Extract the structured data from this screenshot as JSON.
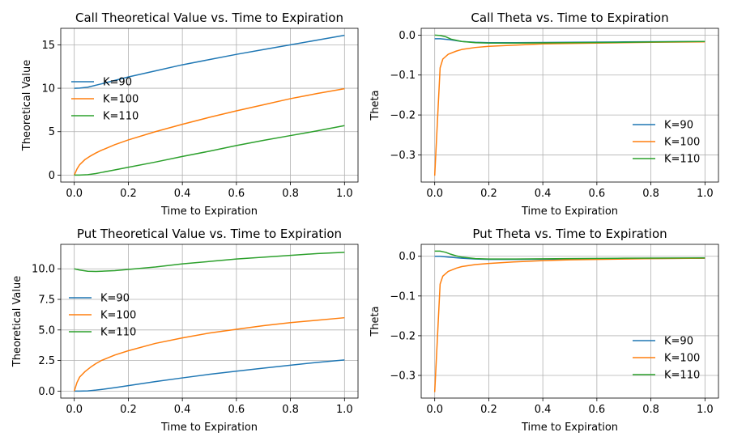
{
  "figure": {
    "background": "#ffffff",
    "grid_color": "#b0b0b0"
  },
  "chart_data": [
    {
      "type": "line",
      "title": "Call Theoretical Value vs. Time to Expiration",
      "xlabel": "Time to Expiration",
      "ylabel": "Theoretical Value",
      "xlim": [
        -0.05,
        1.05
      ],
      "ylim": [
        -0.8,
        16.9
      ],
      "xticks": [
        0.0,
        0.2,
        0.4,
        0.6,
        0.8,
        1.0
      ],
      "xtick_labels": [
        "0.0",
        "0.2",
        "0.4",
        "0.6",
        "0.8",
        "1.0"
      ],
      "yticks": [
        0,
        5,
        10,
        15
      ],
      "ytick_labels": [
        "0",
        "5",
        "10",
        "15"
      ],
      "grid": true,
      "legend_position": "center-left",
      "series": [
        {
          "name": "K=90",
          "color": "#1f77b4",
          "x": [
            0.0,
            0.02,
            0.05,
            0.1,
            0.15,
            0.2,
            0.3,
            0.4,
            0.5,
            0.6,
            0.7,
            0.8,
            0.9,
            1.0
          ],
          "y": [
            10.0,
            10.02,
            10.12,
            10.5,
            10.9,
            11.3,
            12.0,
            12.7,
            13.3,
            13.9,
            14.45,
            15.0,
            15.55,
            16.1
          ]
        },
        {
          "name": "K=100",
          "color": "#ff7f0e",
          "x": [
            0.0,
            0.01,
            0.02,
            0.04,
            0.06,
            0.08,
            0.1,
            0.15,
            0.2,
            0.3,
            0.4,
            0.5,
            0.6,
            0.7,
            0.8,
            0.9,
            1.0
          ],
          "y": [
            0.0,
            0.7,
            1.2,
            1.8,
            2.2,
            2.55,
            2.85,
            3.5,
            4.05,
            5.0,
            5.85,
            6.65,
            7.4,
            8.1,
            8.8,
            9.4,
            9.95
          ]
        },
        {
          "name": "K=110",
          "color": "#2ca02c",
          "x": [
            0.0,
            0.02,
            0.05,
            0.08,
            0.1,
            0.15,
            0.2,
            0.3,
            0.4,
            0.5,
            0.6,
            0.7,
            0.8,
            0.9,
            1.0
          ],
          "y": [
            0.0,
            0.0,
            0.05,
            0.18,
            0.3,
            0.6,
            0.9,
            1.5,
            2.15,
            2.75,
            3.4,
            4.0,
            4.55,
            5.1,
            5.7
          ]
        }
      ]
    },
    {
      "type": "line",
      "title": "Call Theta vs. Time to Expiration",
      "xlabel": "Time to Expiration",
      "ylabel": "Theta",
      "xlim": [
        -0.05,
        1.05
      ],
      "ylim": [
        -0.368,
        0.017
      ],
      "xticks": [
        0.0,
        0.2,
        0.4,
        0.6,
        0.8,
        1.0
      ],
      "xtick_labels": [
        "0.0",
        "0.2",
        "0.4",
        "0.6",
        "0.8",
        "1.0"
      ],
      "yticks": [
        0.0,
        -0.1,
        -0.2,
        -0.3
      ],
      "ytick_labels": [
        "0.0",
        "−0.1",
        "−0.2",
        "−0.3"
      ],
      "grid": true,
      "legend_position": "lower-right",
      "series": [
        {
          "name": "K=90",
          "color": "#1f77b4",
          "x": [
            0.0,
            0.02,
            0.05,
            0.1,
            0.15,
            0.2,
            0.3,
            0.5,
            0.7,
            1.0
          ],
          "y": [
            -0.009,
            -0.009,
            -0.011,
            -0.016,
            -0.018,
            -0.019,
            -0.019,
            -0.018,
            -0.017,
            -0.016
          ]
        },
        {
          "name": "K=100",
          "color": "#ff7f0e",
          "x": [
            0.0,
            0.02,
            0.03,
            0.05,
            0.08,
            0.1,
            0.15,
            0.2,
            0.3,
            0.4,
            0.5,
            0.6,
            0.8,
            1.0
          ],
          "y": [
            -0.352,
            -0.082,
            -0.06,
            -0.048,
            -0.04,
            -0.036,
            -0.031,
            -0.028,
            -0.025,
            -0.022,
            -0.021,
            -0.02,
            -0.018,
            -0.017
          ]
        },
        {
          "name": "K=110",
          "color": "#2ca02c",
          "x": [
            0.0,
            0.02,
            0.04,
            0.06,
            0.1,
            0.15,
            0.2,
            0.3,
            0.5,
            0.7,
            1.0
          ],
          "y": [
            0.0,
            -0.001,
            -0.004,
            -0.01,
            -0.016,
            -0.019,
            -0.02,
            -0.02,
            -0.019,
            -0.018,
            -0.016
          ]
        }
      ]
    },
    {
      "type": "line",
      "title": "Put Theoretical Value vs. Time to Expiration",
      "xlabel": "Time to Expiration",
      "ylabel": "Theoretical Value",
      "xlim": [
        -0.05,
        1.05
      ],
      "ylim": [
        -0.57,
        12.0
      ],
      "xticks": [
        0.0,
        0.2,
        0.4,
        0.6,
        0.8,
        1.0
      ],
      "xtick_labels": [
        "0.0",
        "0.2",
        "0.4",
        "0.6",
        "0.8",
        "1.0"
      ],
      "yticks": [
        0.0,
        2.5,
        5.0,
        7.5,
        10.0
      ],
      "ytick_labels": [
        "0.0",
        "2.5",
        "5.0",
        "7.5",
        "10.0"
      ],
      "grid": true,
      "legend_position": "center-left",
      "series": [
        {
          "name": "K=90",
          "color": "#1f77b4",
          "x": [
            0.0,
            0.02,
            0.05,
            0.08,
            0.1,
            0.15,
            0.2,
            0.3,
            0.4,
            0.5,
            0.6,
            0.7,
            0.8,
            0.9,
            1.0
          ],
          "y": [
            0.0,
            0.0,
            0.02,
            0.08,
            0.13,
            0.28,
            0.45,
            0.78,
            1.08,
            1.37,
            1.63,
            1.88,
            2.12,
            2.35,
            2.55
          ]
        },
        {
          "name": "K=100",
          "color": "#ff7f0e",
          "x": [
            0.0,
            0.01,
            0.02,
            0.04,
            0.06,
            0.08,
            0.1,
            0.15,
            0.2,
            0.3,
            0.4,
            0.5,
            0.6,
            0.7,
            0.8,
            0.9,
            1.0
          ],
          "y": [
            0.0,
            0.7,
            1.15,
            1.6,
            1.95,
            2.25,
            2.5,
            2.95,
            3.3,
            3.9,
            4.35,
            4.75,
            5.05,
            5.35,
            5.6,
            5.8,
            6.0
          ]
        },
        {
          "name": "K=110",
          "color": "#2ca02c",
          "x": [
            0.0,
            0.02,
            0.05,
            0.08,
            0.1,
            0.15,
            0.2,
            0.3,
            0.4,
            0.5,
            0.6,
            0.7,
            0.8,
            0.9,
            1.0
          ],
          "y": [
            10.0,
            9.9,
            9.8,
            9.78,
            9.8,
            9.85,
            9.95,
            10.15,
            10.4,
            10.6,
            10.8,
            10.95,
            11.1,
            11.25,
            11.35
          ]
        }
      ]
    },
    {
      "type": "line",
      "title": "Put Theta vs. Time to Expiration",
      "xlabel": "Time to Expiration",
      "ylabel": "Theta",
      "xlim": [
        -0.05,
        1.05
      ],
      "ylim": [
        -0.357,
        0.03
      ],
      "xticks": [
        0.0,
        0.2,
        0.4,
        0.6,
        0.8,
        1.0
      ],
      "xtick_labels": [
        "0.0",
        "0.2",
        "0.4",
        "0.6",
        "0.8",
        "1.0"
      ],
      "yticks": [
        0.0,
        -0.1,
        -0.2,
        -0.3
      ],
      "ytick_labels": [
        "0.0",
        "−0.1",
        "−0.2",
        "−0.3"
      ],
      "grid": true,
      "legend_position": "lower-right",
      "series": [
        {
          "name": "K=90",
          "color": "#1f77b4",
          "x": [
            0.0,
            0.02,
            0.05,
            0.1,
            0.15,
            0.2,
            0.3,
            0.5,
            0.7,
            1.0
          ],
          "y": [
            0.0,
            0.0,
            -0.002,
            -0.005,
            -0.007,
            -0.008,
            -0.008,
            -0.007,
            -0.006,
            -0.005
          ]
        },
        {
          "name": "K=100",
          "color": "#ff7f0e",
          "x": [
            0.0,
            0.02,
            0.03,
            0.05,
            0.08,
            0.1,
            0.15,
            0.2,
            0.3,
            0.4,
            0.5,
            0.6,
            0.8,
            1.0
          ],
          "y": [
            -0.342,
            -0.07,
            -0.05,
            -0.038,
            -0.03,
            -0.026,
            -0.021,
            -0.018,
            -0.014,
            -0.011,
            -0.009,
            -0.008,
            -0.006,
            -0.005
          ]
        },
        {
          "name": "K=110",
          "color": "#2ca02c",
          "x": [
            0.0,
            0.02,
            0.04,
            0.06,
            0.08,
            0.1,
            0.15,
            0.2,
            0.3,
            0.5,
            0.7,
            1.0
          ],
          "y": [
            0.013,
            0.013,
            0.01,
            0.005,
            0.001,
            -0.002,
            -0.006,
            -0.007,
            -0.007,
            -0.006,
            -0.005,
            -0.004
          ]
        }
      ]
    }
  ]
}
